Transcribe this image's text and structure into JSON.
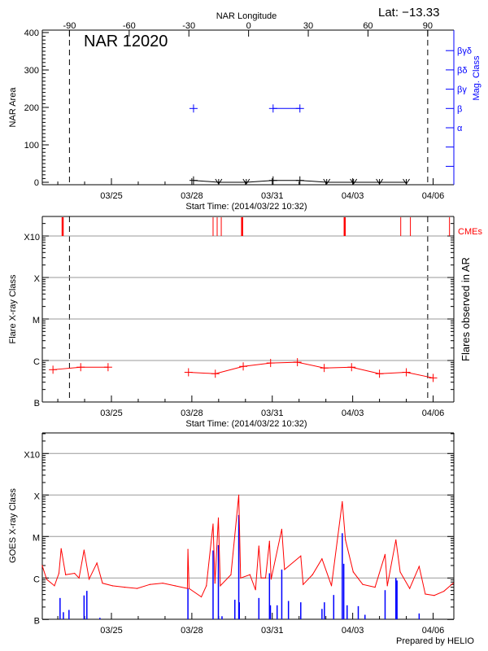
{
  "header": {
    "lat_label": "Lat: −13.33",
    "footer": "Prepared by HELIO"
  },
  "colors": {
    "flare": "#ff0000",
    "mag_class": "#0000ff",
    "goes_long": "#ff0000",
    "goes_short": "#0000ff",
    "grid": "#999999",
    "cme": "#ff0000"
  },
  "xticks": [
    {
      "t": "2014-03-25T00:00",
      "label": "03/25"
    },
    {
      "t": "2014-03-28T00:00",
      "label": "03/28"
    },
    {
      "t": "2014-03-31T00:00",
      "label": "03/31"
    },
    {
      "t": "2014-04-03T00:00",
      "label": "04/03"
    },
    {
      "t": "2014-04-06T00:00",
      "label": "04/06"
    }
  ],
  "xlim": [
    "2014-03-22T10:32",
    "2014-04-06T18:00"
  ],
  "class_ticks": [
    {
      "label": "B",
      "flux": 1e-07
    },
    {
      "label": "C",
      "flux": 1e-06
    },
    {
      "label": "M",
      "flux": 1e-05
    },
    {
      "label": "X",
      "flux": 0.0001
    },
    {
      "label": "X10",
      "flux": 0.001
    }
  ],
  "chart_data": [
    {
      "type": "line",
      "title": "NAR 12020",
      "xlabel": "Start Time: (2014/03/22 10:32)",
      "ylabel": "NAR Area",
      "ylim": [
        0,
        400
      ],
      "yticks": [
        0,
        100,
        200,
        300,
        400
      ],
      "top_axis": {
        "label": "NAR Longitude",
        "ticks": [
          -90,
          -60,
          -30,
          0,
          30,
          60,
          90
        ]
      },
      "limb_longitudes": [
        -90,
        90
      ],
      "right_axis": {
        "label": "Mag. Class",
        "ticks": [
          "α",
          "β",
          "βγ",
          "βδ",
          "βγδ"
        ]
      },
      "area_series": [
        {
          "t": "2014-03-28T01:30",
          "area": 5,
          "marker": "plus"
        },
        {
          "t": "2014-03-29T00:00",
          "area": 0,
          "marker": "down-arrow"
        },
        {
          "t": "2014-03-30T00:45",
          "area": 0,
          "marker": "down-arrow"
        },
        {
          "t": "2014-03-31T00:45",
          "area": 5,
          "marker": "plus"
        },
        {
          "t": "2014-04-01T00:45",
          "area": 5,
          "marker": "plus"
        },
        {
          "t": "2014-04-02T00:45",
          "area": 0,
          "marker": "down-arrow"
        },
        {
          "t": "2014-04-03T00:45",
          "area": 0,
          "marker": "down-arrow"
        },
        {
          "t": "2014-04-04T00:00",
          "area": 0,
          "marker": "down-arrow"
        },
        {
          "t": "2014-04-05T00:00",
          "area": 0,
          "marker": "down-arrow"
        }
      ],
      "mag_class_series": [
        {
          "t": "2014-03-28T01:30",
          "class": "β",
          "connect": false
        },
        {
          "t": "2014-03-31T00:45",
          "class": "β",
          "connect": true
        },
        {
          "t": "2014-04-01T00:45",
          "class": "β",
          "connect": true
        }
      ]
    },
    {
      "type": "line",
      "xlabel": "Start Time: (2014/03/22 10:32)",
      "ylabel": "Flare X-ray Class",
      "right_label": "Flares observed in AR",
      "yscale": "log",
      "ylim": [
        1e-07,
        0.003
      ],
      "cme_label": "CMEs",
      "cmes": [
        {
          "t": "2014-03-23T04:20",
          "thick": true
        },
        {
          "t": "2014-03-28T19:00",
          "thick": false
        },
        {
          "t": "2014-03-28T22:40",
          "thick": false
        },
        {
          "t": "2014-03-29T02:20",
          "thick": false
        },
        {
          "t": "2014-03-29T21:00",
          "thick": true
        },
        {
          "t": "2014-04-02T16:50",
          "thick": true
        },
        {
          "t": "2014-04-04T19:00",
          "thick": false
        },
        {
          "t": "2014-04-05T03:40",
          "thick": false
        },
        {
          "t": "2014-04-06T14:40",
          "thick": false
        }
      ],
      "segments": [
        [
          {
            "t": "2014-03-22T19:40",
            "flux": 6e-07
          },
          {
            "t": "2014-03-23T20:30",
            "flux": 6.9e-07
          },
          {
            "t": "2014-03-24T21:00",
            "flux": 6.9e-07
          }
        ],
        [
          {
            "t": "2014-03-27T21:00",
            "flux": 5.2e-07
          },
          {
            "t": "2014-03-28T21:00",
            "flux": 4.8e-07
          },
          {
            "t": "2014-03-29T22:00",
            "flux": 7.2e-07
          },
          {
            "t": "2014-03-30T22:30",
            "flux": 8.7e-07
          },
          {
            "t": "2014-03-31T22:30",
            "flux": 9.1e-07
          },
          {
            "t": "2014-04-01T22:30",
            "flux": 6.6e-07
          },
          {
            "t": "2014-04-02T23:00",
            "flux": 6.9e-07
          },
          {
            "t": "2014-04-04T00:00",
            "flux": 4.8e-07
          },
          {
            "t": "2014-04-05T00:00",
            "flux": 5.2e-07
          },
          {
            "t": "2014-04-06T00:00",
            "flux": 3.8e-07
          }
        ]
      ]
    },
    {
      "type": "line",
      "ylabel": "GOES X-ray Class",
      "yscale": "log",
      "ylim": [
        1e-07,
        0.003
      ],
      "long_channel": [
        [
          "2014-03-22T10:00",
          2e-06
        ],
        [
          "2014-03-22T14:00",
          9.3e-07
        ],
        [
          "2014-03-22T21:00",
          6.5e-07
        ],
        [
          "2014-03-23T01:00",
          1.3e-06
        ],
        [
          "2014-03-23T03:00",
          5.1e-06
        ],
        [
          "2014-03-23T07:00",
          1.2e-06
        ],
        [
          "2014-03-23T15:00",
          1.3e-06
        ],
        [
          "2014-03-23T19:00",
          1e-06
        ],
        [
          "2014-03-23T23:30",
          4.7e-06
        ],
        [
          "2014-03-24T04:00",
          9.4e-07
        ],
        [
          "2014-03-24T11:00",
          2.3e-06
        ],
        [
          "2014-03-24T16:00",
          7.5e-07
        ],
        [
          "2014-03-25T01:00",
          6.5e-07
        ],
        [
          "2014-03-25T12:00",
          6e-07
        ],
        [
          "2014-03-25T23:00",
          5.6e-07
        ],
        [
          "2014-03-26T10:30",
          7e-07
        ],
        [
          "2014-03-26T22:00",
          7.5e-07
        ],
        [
          "2014-03-27T09:00",
          6.5e-07
        ],
        [
          "2014-03-27T20:00",
          5.6e-07
        ],
        [
          "2014-03-27T20:30",
          4.9e-06
        ],
        [
          "2014-03-27T21:30",
          5.6e-07
        ],
        [
          "2014-03-28T08:30",
          3.5e-07
        ],
        [
          "2014-03-28T13:00",
          6.5e-07
        ],
        [
          "2014-03-28T19:00",
          2e-05
        ],
        [
          "2014-03-28T20:40",
          7.5e-07
        ],
        [
          "2014-03-28T23:45",
          2.8e-05
        ],
        [
          "2014-03-29T01:30",
          6.5e-07
        ],
        [
          "2014-03-29T11:00",
          1.2e-06
        ],
        [
          "2014-03-29T18:00",
          0.0001
        ],
        [
          "2014-03-29T19:40",
          1e-06
        ],
        [
          "2014-03-30T04:00",
          1.2e-06
        ],
        [
          "2014-03-30T09:00",
          5.2e-07
        ],
        [
          "2014-03-30T12:00",
          5.9e-06
        ],
        [
          "2014-03-30T14:00",
          1e-06
        ],
        [
          "2014-03-30T18:00",
          1e-06
        ],
        [
          "2014-03-30T21:30",
          7.7e-06
        ],
        [
          "2014-03-30T23:00",
          9.4e-07
        ],
        [
          "2014-03-31T08:30",
          1.5e-05
        ],
        [
          "2014-03-31T11:00",
          1.6e-06
        ],
        [
          "2014-04-01T01:30",
          3.4e-06
        ],
        [
          "2014-04-01T03:40",
          7e-07
        ],
        [
          "2014-04-01T12:00",
          1.2e-06
        ],
        [
          "2014-04-01T20:30",
          2.9e-06
        ],
        [
          "2014-04-02T05:00",
          6.5e-07
        ],
        [
          "2014-04-02T14:40",
          6.9e-05
        ],
        [
          "2014-04-02T17:30",
          8.3e-06
        ],
        [
          "2014-04-03T00:30",
          1.4e-06
        ],
        [
          "2014-04-03T09:00",
          7e-07
        ],
        [
          "2014-04-03T20:00",
          6e-07
        ],
        [
          "2014-04-04T05:00",
          3.7e-06
        ],
        [
          "2014-04-04T07:00",
          6.5e-07
        ],
        [
          "2014-04-04T14:40",
          8.3e-06
        ],
        [
          "2014-04-04T18:30",
          1.4e-06
        ],
        [
          "2014-04-05T03:00",
          5.6e-07
        ],
        [
          "2014-04-05T11:30",
          1.9e-06
        ],
        [
          "2014-04-05T17:00",
          4.1e-07
        ],
        [
          "2014-04-06T01:00",
          3.8e-07
        ],
        [
          "2014-04-06T09:40",
          4.8e-07
        ],
        [
          "2014-04-06T18:00",
          7.5e-07
        ]
      ],
      "short_channel": [
        [
          "2014-03-23T02:00",
          3.3e-07
        ],
        [
          "2014-03-23T05:00",
          1.5e-07
        ],
        [
          "2014-03-23T10:00",
          1.7e-07
        ],
        [
          "2014-03-23T23:30",
          3.8e-07
        ],
        [
          "2014-03-24T02:00",
          4.9e-07
        ],
        [
          "2014-03-24T13:40",
          1.1e-07
        ],
        [
          "2014-03-27T20:30",
          5.6e-07
        ],
        [
          "2014-03-28T19:00",
          4.6e-06
        ],
        [
          "2014-03-28T23:45",
          6.2e-06
        ],
        [
          "2014-03-29T03:00",
          1.2e-07
        ],
        [
          "2014-03-29T14:30",
          3e-07
        ],
        [
          "2014-03-29T18:00",
          3.3e-05
        ],
        [
          "2014-03-29T18:30",
          2.6e-07
        ],
        [
          "2014-03-30T12:00",
          3.3e-07
        ],
        [
          "2014-03-30T21:30",
          1.3e-06
        ],
        [
          "2014-03-30T22:20",
          2.2e-07
        ],
        [
          "2014-03-31T04:20",
          2.2e-07
        ],
        [
          "2014-03-31T08:30",
          1.6e-06
        ],
        [
          "2014-03-31T14:30",
          2.8e-07
        ],
        [
          "2014-04-01T01:30",
          2.6e-07
        ],
        [
          "2014-04-01T20:30",
          1.8e-07
        ],
        [
          "2014-04-01T22:40",
          2.6e-07
        ],
        [
          "2014-04-02T07:00",
          3.9e-07
        ],
        [
          "2014-04-02T14:40",
          1.2e-05
        ],
        [
          "2014-04-02T16:00",
          2.2e-06
        ],
        [
          "2014-04-02T19:00",
          2.2e-07
        ],
        [
          "2014-04-03T05:00",
          2.1e-07
        ],
        [
          "2014-04-03T11:00",
          1.3e-07
        ],
        [
          "2014-04-04T05:00",
          5.1e-07
        ],
        [
          "2014-04-04T14:40",
          1e-06
        ],
        [
          "2014-04-04T15:40",
          8.7e-07
        ],
        [
          "2014-04-05T11:30",
          1.4e-07
        ]
      ]
    }
  ]
}
